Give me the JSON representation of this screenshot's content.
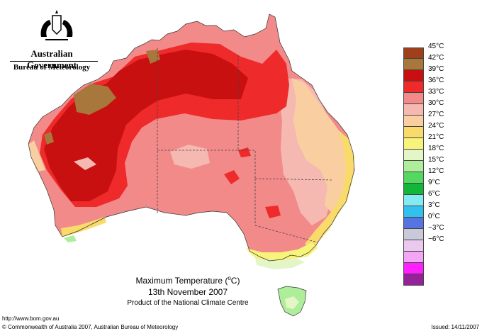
{
  "branding": {
    "government": "Australian Government",
    "agency": "Bureau of Meteorology"
  },
  "title": {
    "line1_prefix": "Maximum Temperature (",
    "line1_degree": "o",
    "line1_suffix": "C)",
    "date": "13th November 2007",
    "product": "Product of the National Climate Centre"
  },
  "footer": {
    "url": "http://www.bom.gov.au",
    "copyright": "© Commonwealth of Australia 2007, Australian Bureau of Meteorology",
    "issued": "Issued: 14/11/2007"
  },
  "legend": {
    "unit": "°C",
    "bands": [
      {
        "label": "45",
        "color": "#a0401a"
      },
      {
        "label": "42",
        "color": "#a8773c"
      },
      {
        "label": "39",
        "color": "#c81010"
      },
      {
        "label": "36",
        "color": "#ee2a2a"
      },
      {
        "label": "33",
        "color": "#f28a8a"
      },
      {
        "label": "30",
        "color": "#f6b9b2"
      },
      {
        "label": "27",
        "color": "#f9cfa2"
      },
      {
        "label": "24",
        "color": "#f9db6c"
      },
      {
        "label": "21",
        "color": "#f8f37a"
      },
      {
        "label": "18",
        "color": "#e4f5c8"
      },
      {
        "label": "15",
        "color": "#aeed9a"
      },
      {
        "label": "12",
        "color": "#55d860"
      },
      {
        "label": "9",
        "color": "#12b73a"
      },
      {
        "label": "6",
        "color": "#84ebf2"
      },
      {
        "label": "3",
        "color": "#32c0ee"
      },
      {
        "label": "0",
        "color": "#5574e2"
      },
      {
        "label": "−3",
        "color": "#c9c9da"
      },
      {
        "label": "−6",
        "color": "#ebc8ee"
      },
      {
        "label": "",
        "color": "#f2a6f5"
      },
      {
        "label": "",
        "color": "#ff20ff"
      },
      {
        "label": "",
        "color": "#96229a"
      }
    ]
  },
  "map_colors": {
    "c45": "#a0401a",
    "c42": "#a8773c",
    "c39": "#c81010",
    "c36": "#ee2a2a",
    "c33": "#f28a8a",
    "c30": "#f6b9b2",
    "c27": "#f9cfa2",
    "c24": "#f9db6c",
    "c21": "#f8f37a",
    "c18": "#e4f5c8",
    "c15": "#aeed9a",
    "c12": "#55d860"
  }
}
